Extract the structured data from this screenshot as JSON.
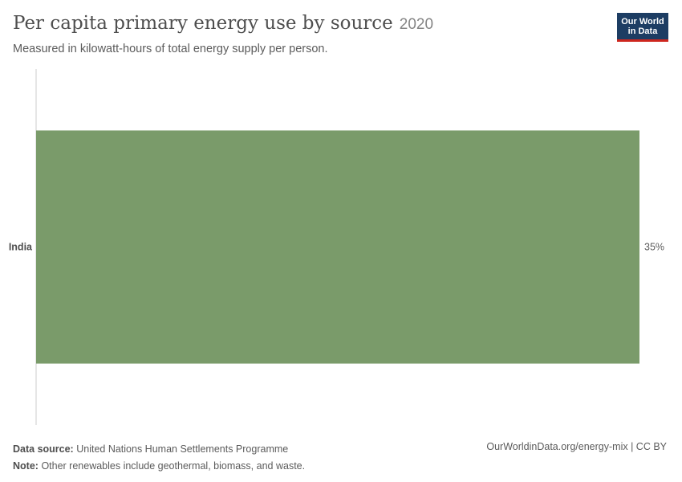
{
  "header": {
    "title": "Per capita primary energy use by source",
    "year": "2020",
    "subtitle": "Measured in kilowatt-hours of total energy supply per person."
  },
  "logo": {
    "line1": "Our World",
    "line2": "in Data"
  },
  "chart_data": {
    "type": "bar",
    "orientation": "horizontal",
    "categories": [
      "India"
    ],
    "values": [
      35
    ],
    "value_labels": [
      "35%"
    ],
    "bar_color": "#7a9b6a",
    "xlim": [
      0,
      35
    ],
    "grid": false
  },
  "footer": {
    "source_label": "Data source:",
    "source_value": "United Nations Human Settlements Programme",
    "note_label": "Note:",
    "note_value": "Other renewables include geothermal, biomass, and waste.",
    "credit": "OurWorldinData.org/energy-mix | CC BY"
  }
}
